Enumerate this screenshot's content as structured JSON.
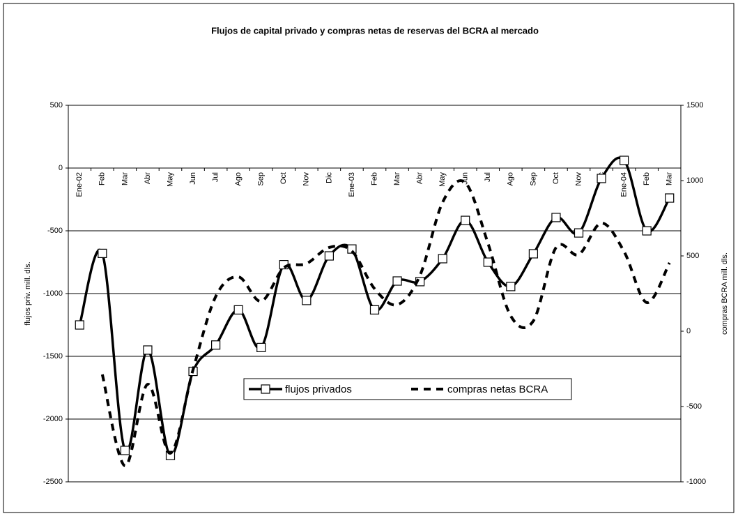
{
  "chart_data": {
    "type": "line",
    "title": "Flujos de capital privado y compras netas de reservas del BCRA al mercado",
    "y_label": "flujos priv.  mill. dls.",
    "y2_label": "compras BCRA mill. dls.",
    "categories": [
      "Ene-02",
      "Feb",
      "Mar",
      "Abr",
      "May",
      "Jun",
      "Jul",
      "Ago",
      "Sep",
      "Oct",
      "Nov",
      "Dic",
      "Ene-03",
      "Feb",
      "Mar",
      "Abr",
      "May",
      "Jun",
      "Jul",
      "Ago",
      "Sep",
      "Oct",
      "Nov",
      "Dic",
      "Ene-04",
      "Feb",
      "Mar"
    ],
    "series": [
      {
        "name": "flujos privados",
        "color": "#000000",
        "line_style": "solid",
        "marker": "square",
        "axis": "y",
        "values": [
          -1250,
          -680,
          -2250,
          -1450,
          -2290,
          -1620,
          -1410,
          -1130,
          -1430,
          -770,
          -1055,
          -700,
          -645,
          -1130,
          -900,
          -905,
          -722,
          -417,
          -750,
          -944,
          -683,
          -394,
          -517,
          -83,
          61,
          -500,
          -239
        ]
      },
      {
        "name": "compras netas BCRA",
        "color": "#000000",
        "line_style": "dashed",
        "marker": "none",
        "axis": "y2",
        "values": [
          null,
          -287,
          -894,
          -352,
          -810,
          -255,
          231,
          361,
          199,
          421,
          449,
          556,
          532,
          282,
          176,
          370,
          856,
          986,
          583,
          102,
          69,
          556,
          509,
          718,
          528,
          190,
          454
        ]
      }
    ],
    "ylim": [
      -2500,
      500
    ],
    "yticks": [
      -2500,
      -2000,
      -1500,
      -1000,
      -500,
      0,
      500
    ],
    "y2lim": [
      -1000,
      1500
    ],
    "y2ticks": [
      -1000,
      -500,
      0,
      500,
      1000,
      1500
    ],
    "grid": true,
    "smooth": true
  }
}
